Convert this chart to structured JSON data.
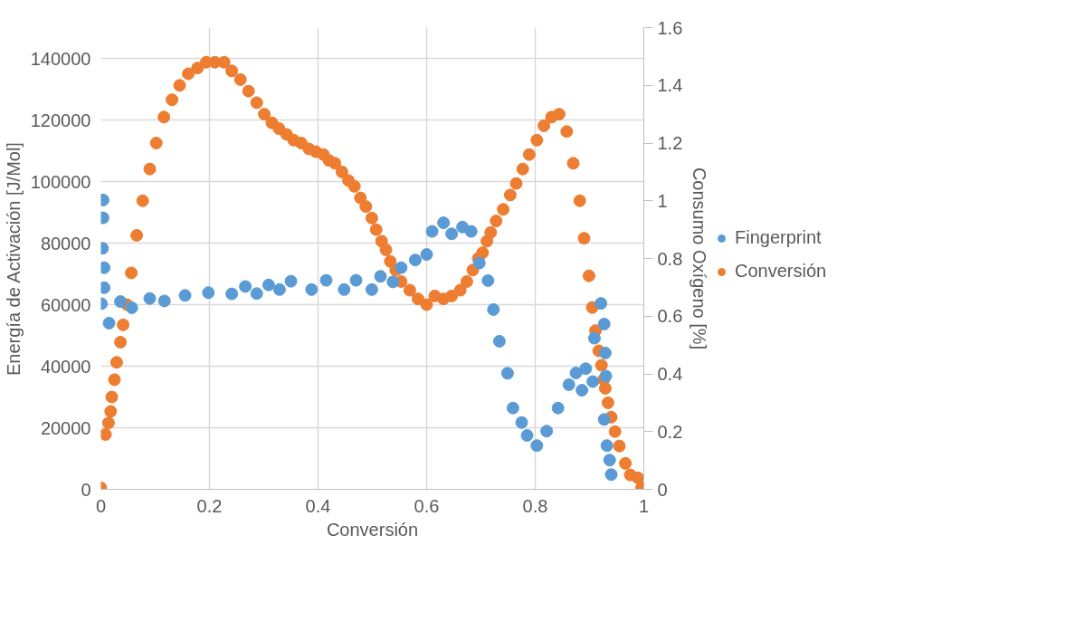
{
  "chart_data": {
    "type": "scatter",
    "xlabel": "Conversión",
    "ylabel": "Energía de Activación [J/Mol]",
    "y2label": "Consumo Oxígeno [%]",
    "xlim": [
      0,
      1
    ],
    "xticks": [
      0,
      0.2,
      0.4,
      0.6,
      0.8,
      1
    ],
    "ylim": [
      0,
      150000
    ],
    "yticks": [
      0,
      20000,
      40000,
      60000,
      80000,
      100000,
      120000,
      140000
    ],
    "y2lim": [
      0,
      1.6
    ],
    "y2ticks": [
      0,
      0.2,
      0.4,
      0.6,
      0.8,
      1,
      1.2,
      1.4,
      1.6
    ],
    "grid": true,
    "legend": "right",
    "marker": "circle",
    "series": [
      {
        "name": "Fingerprint",
        "color": "#5b9bd5",
        "x": [
          0.004,
          0.004,
          0.003,
          0.006,
          0.006,
          0.001,
          0.015,
          0.036,
          0.057,
          0.09,
          0.117,
          0.155,
          0.198,
          0.241,
          0.266,
          0.287,
          0.309,
          0.329,
          0.35,
          0.388,
          0.415,
          0.448,
          0.47,
          0.499,
          0.515,
          0.538,
          0.553,
          0.579,
          0.6,
          0.61,
          0.631,
          0.646,
          0.666,
          0.682,
          0.697,
          0.713,
          0.723,
          0.734,
          0.749,
          0.759,
          0.775,
          0.785,
          0.803,
          0.821,
          0.842,
          0.862,
          0.875,
          0.886,
          0.893,
          0.906,
          0.909,
          0.921,
          0.927,
          0.929,
          0.93,
          0.927,
          0.932,
          0.937,
          0.94
        ],
        "values": [
          94000,
          88200,
          78300,
          72000,
          65500,
          60300,
          54000,
          61000,
          59000,
          62000,
          61200,
          63000,
          63900,
          63500,
          65900,
          63600,
          66400,
          64900,
          67600,
          64900,
          67900,
          64900,
          67900,
          64900,
          69200,
          67400,
          72000,
          74500,
          76300,
          83800,
          86600,
          83000,
          85200,
          83800,
          73500,
          67800,
          58400,
          48100,
          37700,
          26400,
          21700,
          17500,
          14200,
          18900,
          26400,
          34000,
          37800,
          32200,
          39200,
          35000,
          49100,
          60400,
          53700,
          44300,
          36800,
          22700,
          14200,
          9500,
          4800
        ]
      },
      {
        "name": "Conversión",
        "color": "#ed7d31",
        "axis": "y2",
        "x": [
          0,
          0.0085,
          0.014,
          0.018,
          0.02,
          0.025,
          0.029,
          0.036,
          0.041,
          0.048,
          0.056,
          0.066,
          0.077,
          0.09,
          0.102,
          0.116,
          0.131,
          0.145,
          0.161,
          0.178,
          0.194,
          0.21,
          0.227,
          0.241,
          0.257,
          0.272,
          0.287,
          0.301,
          0.315,
          0.328,
          0.342,
          0.355,
          0.369,
          0.383,
          0.396,
          0.41,
          0.42,
          0.431,
          0.444,
          0.456,
          0.467,
          0.478,
          0.488,
          0.499,
          0.507,
          0.517,
          0.525,
          0.533,
          0.543,
          0.553,
          0.569,
          0.584,
          0.6,
          0.615,
          0.631,
          0.646,
          0.662,
          0.674,
          0.685,
          0.695,
          0.703,
          0.711,
          0.718,
          0.728,
          0.741,
          0.754,
          0.765,
          0.777,
          0.789,
          0.803,
          0.816,
          0.83,
          0.844,
          0.858,
          0.87,
          0.882,
          0.89,
          0.899,
          0.905,
          0.911,
          0.917,
          0.922,
          0.926,
          0.929,
          0.934,
          0.94,
          0.947,
          0.955,
          0.966,
          0.975,
          0.989,
          0.996
        ],
        "values": [
          0.005,
          0.19,
          0.23,
          0.27,
          0.32,
          0.38,
          0.44,
          0.51,
          0.57,
          0.64,
          0.75,
          0.88,
          1.0,
          1.11,
          1.2,
          1.29,
          1.35,
          1.4,
          1.44,
          1.46,
          1.48,
          1.48,
          1.48,
          1.45,
          1.42,
          1.38,
          1.34,
          1.3,
          1.27,
          1.25,
          1.23,
          1.21,
          1.2,
          1.18,
          1.17,
          1.16,
          1.14,
          1.13,
          1.1,
          1.07,
          1.05,
          1.01,
          0.98,
          0.94,
          0.9,
          0.86,
          0.83,
          0.79,
          0.76,
          0.72,
          0.69,
          0.66,
          0.64,
          0.67,
          0.66,
          0.67,
          0.69,
          0.72,
          0.76,
          0.8,
          0.82,
          0.86,
          0.89,
          0.93,
          0.97,
          1.02,
          1.06,
          1.11,
          1.16,
          1.21,
          1.26,
          1.29,
          1.3,
          1.24,
          1.13,
          1.0,
          0.87,
          0.74,
          0.63,
          0.55,
          0.48,
          0.43,
          0.38,
          0.35,
          0.3,
          0.25,
          0.2,
          0.15,
          0.09,
          0.05,
          0.04,
          0.006
        ]
      }
    ]
  }
}
